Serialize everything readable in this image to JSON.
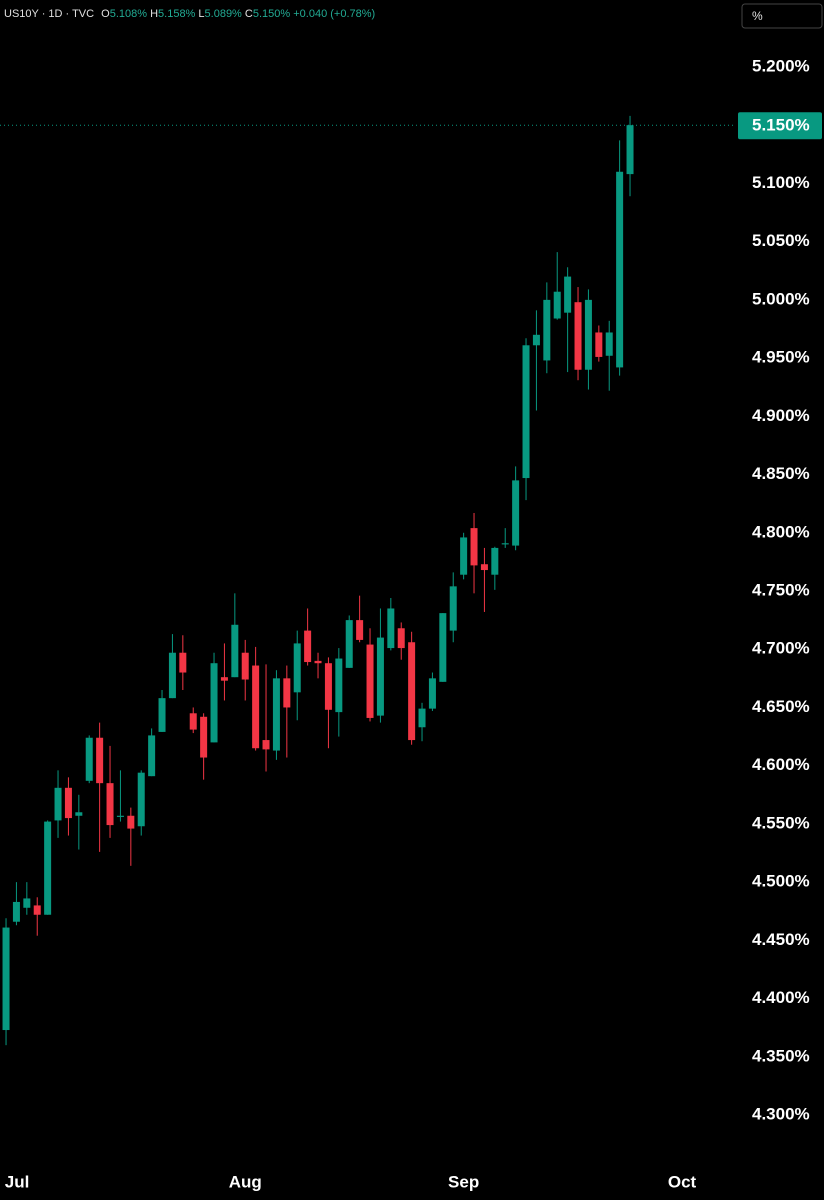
{
  "chart_data": {
    "type": "candlestick",
    "legend": {
      "symbol": "US10Y · 1D · TVC",
      "o_label": "O",
      "o": "5.108%",
      "h_label": "H",
      "h": "5.158%",
      "l_label": "L",
      "l": "5.089%",
      "c_label": "C",
      "c": "5.150%",
      "change": "+0.040 (+0.78%)"
    },
    "unit_button": "%",
    "colors": {
      "up": "#089981",
      "down": "#f23645"
    },
    "x": [
      0,
      1,
      2,
      3,
      4,
      5,
      6,
      7,
      8,
      9,
      10,
      11,
      12,
      13,
      14,
      15,
      16,
      17,
      18,
      19,
      20,
      21,
      22,
      23,
      24,
      25,
      26,
      27,
      28,
      29,
      30,
      31,
      32,
      33,
      34,
      35,
      36,
      37,
      38,
      39,
      40,
      41,
      42,
      43,
      44,
      45,
      46,
      47,
      48,
      49,
      50,
      51,
      52,
      53,
      54,
      55,
      56,
      57,
      58,
      59,
      60
    ],
    "open": [
      4.373,
      4.466,
      4.478,
      4.48,
      4.472,
      4.553,
      4.581,
      4.557,
      4.587,
      4.624,
      4.585,
      4.556,
      4.557,
      4.548,
      4.591,
      4.629,
      4.658,
      4.697,
      4.645,
      4.642,
      4.62,
      4.676,
      4.676,
      4.697,
      4.686,
      4.622,
      4.613,
      4.675,
      4.663,
      4.716,
      4.69,
      4.688,
      4.646,
      4.684,
      4.725,
      4.704,
      4.643,
      4.701,
      4.718,
      4.706,
      4.633,
      4.649,
      4.672,
      4.716,
      4.764,
      4.804,
      4.773,
      4.764,
      4.79,
      4.789,
      4.847,
      4.961,
      4.948,
      4.984,
      4.989,
      4.998,
      4.94,
      4.972,
      4.952,
      4.942,
      5.108
    ],
    "high": [
      4.469,
      4.5,
      4.5,
      4.487,
      4.553,
      4.596,
      4.59,
      4.575,
      4.626,
      4.637,
      4.617,
      4.596,
      4.564,
      4.596,
      4.632,
      4.665,
      4.713,
      4.712,
      4.65,
      4.645,
      4.697,
      4.705,
      4.748,
      4.708,
      4.702,
      4.687,
      4.682,
      4.686,
      4.716,
      4.735,
      4.697,
      4.693,
      4.701,
      4.729,
      4.746,
      4.718,
      4.735,
      4.744,
      4.723,
      4.715,
      4.654,
      4.68,
      4.731,
      4.766,
      4.8,
      4.817,
      4.787,
      4.788,
      4.804,
      4.857,
      4.967,
      4.991,
      5.015,
      5.041,
      5.028,
      5.011,
      5.009,
      4.978,
      4.982,
      5.137,
      5.158
    ],
    "low": [
      4.36,
      4.463,
      4.472,
      4.454,
      4.472,
      4.538,
      4.54,
      4.528,
      4.585,
      4.526,
      4.538,
      4.552,
      4.514,
      4.54,
      4.591,
      4.629,
      4.658,
      4.665,
      4.628,
      4.588,
      4.62,
      4.656,
      4.676,
      4.656,
      4.613,
      4.595,
      4.605,
      4.607,
      4.639,
      4.686,
      4.675,
      4.615,
      4.625,
      4.684,
      4.706,
      4.638,
      4.637,
      4.699,
      4.691,
      4.618,
      4.621,
      4.647,
      4.672,
      4.706,
      4.76,
      4.748,
      4.732,
      4.751,
      4.787,
      4.785,
      4.828,
      4.905,
      4.937,
      4.983,
      4.938,
      4.931,
      4.923,
      4.947,
      4.922,
      4.935,
      5.089
    ],
    "close": [
      4.461,
      4.483,
      4.486,
      4.472,
      4.552,
      4.581,
      4.555,
      4.56,
      4.624,
      4.585,
      4.549,
      4.557,
      4.546,
      4.594,
      4.626,
      4.658,
      4.697,
      4.68,
      4.631,
      4.607,
      4.688,
      4.673,
      4.721,
      4.674,
      4.615,
      4.614,
      4.675,
      4.65,
      4.705,
      4.689,
      4.688,
      4.648,
      4.692,
      4.725,
      4.708,
      4.641,
      4.71,
      4.735,
      4.701,
      4.622,
      4.649,
      4.675,
      4.731,
      4.754,
      4.796,
      4.772,
      4.768,
      4.787,
      4.791,
      4.845,
      4.961,
      4.97,
      5.0,
      5.007,
      5.02,
      4.94,
      5.0,
      4.951,
      4.972,
      5.11,
      5.15
    ],
    "xlim": [
      -0.58,
      70.19
    ],
    "xticks": [
      {
        "value": 1.06,
        "label": "Jul"
      },
      {
        "value": 23,
        "label": "Aug"
      },
      {
        "value": 44,
        "label": "Sep"
      },
      {
        "value": 65,
        "label": "Oct"
      }
    ],
    "ylim": [
      4.2614,
      5.2575
    ],
    "yticks": [
      {
        "value": 4.3,
        "label": "4.300%"
      },
      {
        "value": 4.35,
        "label": "4.350%"
      },
      {
        "value": 4.4,
        "label": "4.400%"
      },
      {
        "value": 4.45,
        "label": "4.450%"
      },
      {
        "value": 4.5,
        "label": "4.500%"
      },
      {
        "value": 4.55,
        "label": "4.550%"
      },
      {
        "value": 4.6,
        "label": "4.600%"
      },
      {
        "value": 4.65,
        "label": "4.650%"
      },
      {
        "value": 4.7,
        "label": "4.700%"
      },
      {
        "value": 4.75,
        "label": "4.750%"
      },
      {
        "value": 4.8,
        "label": "4.800%"
      },
      {
        "value": 4.85,
        "label": "4.850%"
      },
      {
        "value": 4.9,
        "label": "4.900%"
      },
      {
        "value": 4.95,
        "label": "4.950%"
      },
      {
        "value": 5.0,
        "label": "5.000%"
      },
      {
        "value": 5.05,
        "label": "5.050%"
      },
      {
        "value": 5.1,
        "label": "5.100%"
      },
      {
        "value": 5.15,
        "label": "5.150%"
      },
      {
        "value": 5.2,
        "label": "5.200%"
      }
    ],
    "last_price": {
      "value": 5.15,
      "label": "5.150%"
    },
    "grid": false
  }
}
